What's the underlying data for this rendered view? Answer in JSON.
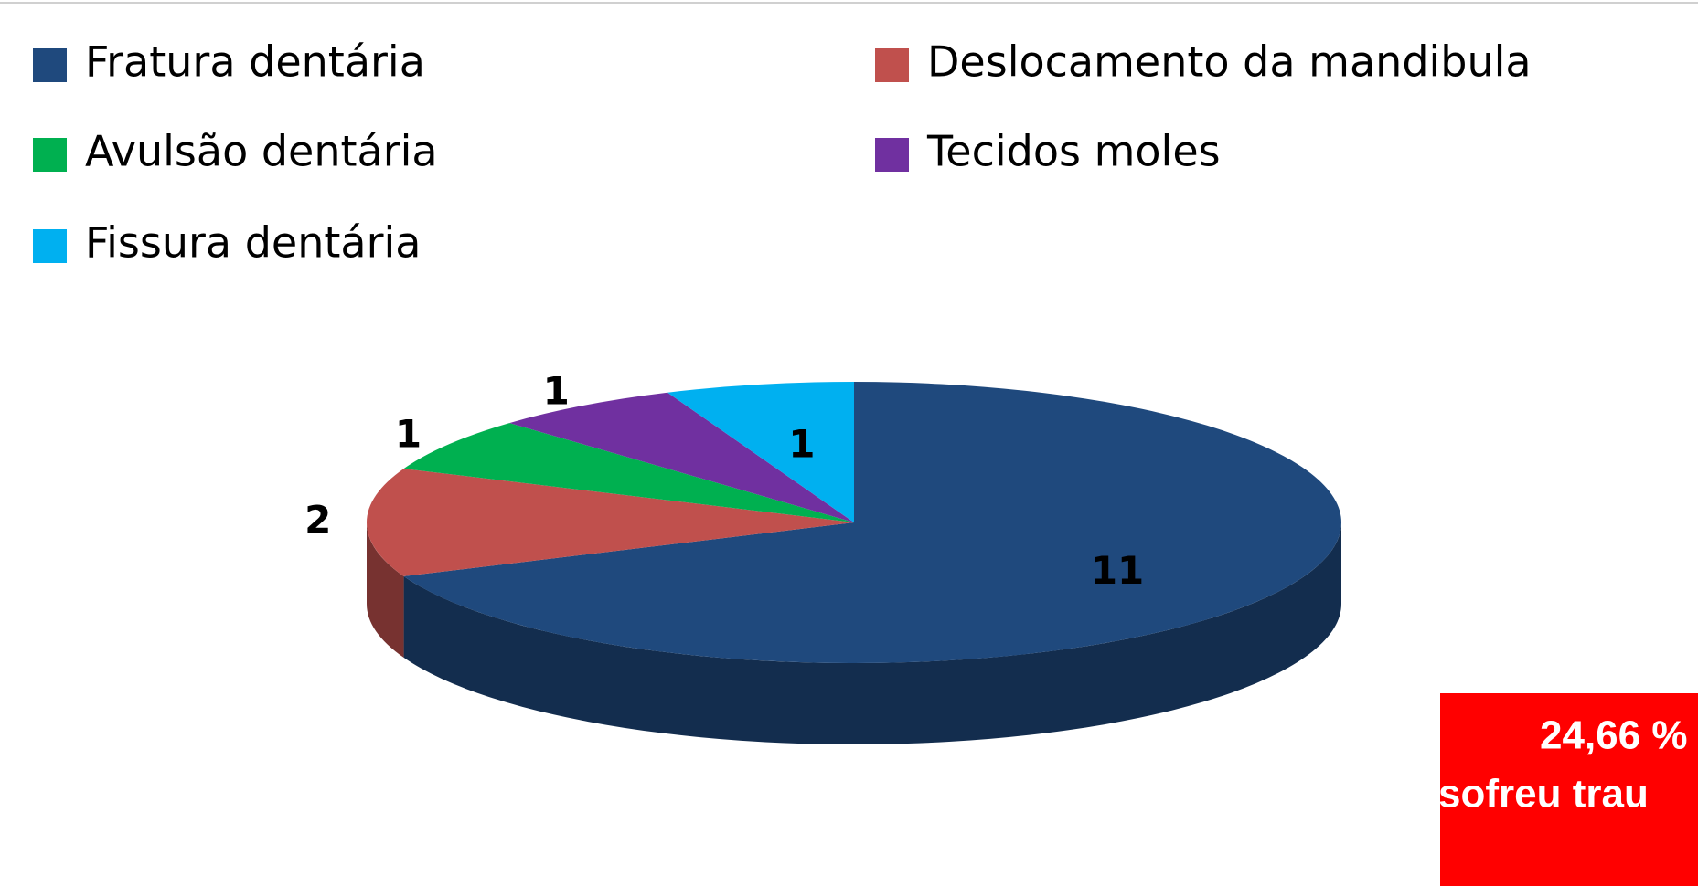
{
  "chart_data": {
    "type": "pie",
    "categories": [
      "Fratura dentária",
      "Deslocamento da mandibula",
      "Avulsão dentária",
      "Tecidos moles",
      "Fissura dentária"
    ],
    "values": [
      11,
      2,
      1,
      1,
      1
    ],
    "colors": [
      "#1f497d",
      "#c0504d",
      "#00b050",
      "#7030a0",
      "#00b0f0"
    ],
    "legend": "top",
    "annotation": [
      "24,66 %",
      "sofreu trau"
    ]
  }
}
